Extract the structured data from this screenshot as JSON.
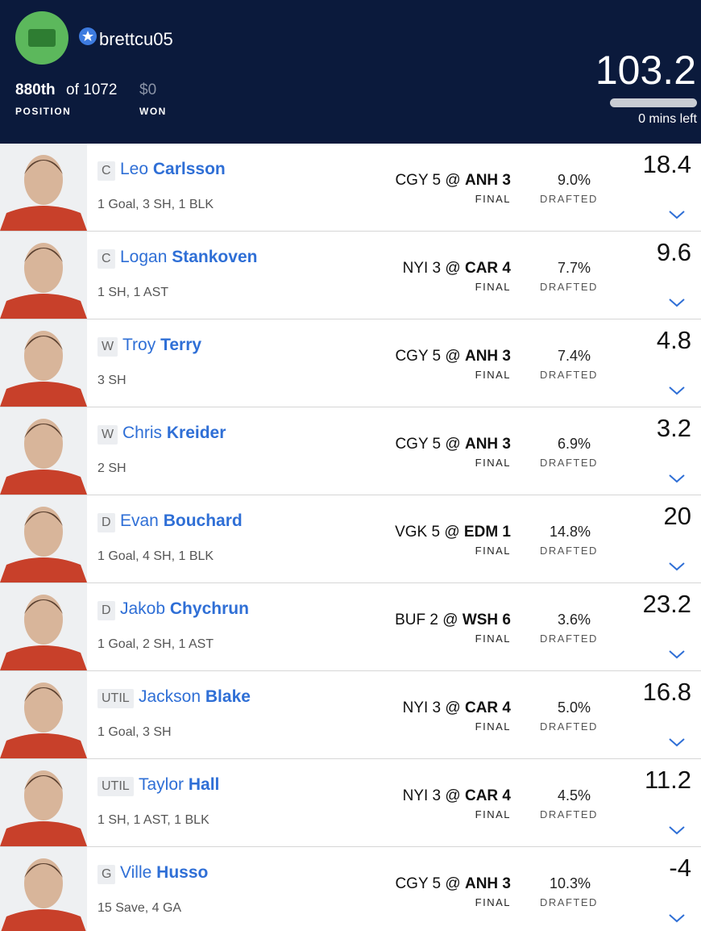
{
  "header": {
    "username": "brettcu05",
    "rank": "880th",
    "of_total": "of 1072",
    "rank_label": "POSITION",
    "won": "$0",
    "won_label": "WON",
    "score": "103.2",
    "time_left": "0 mins left"
  },
  "players": [
    {
      "pos": "C",
      "first": "Leo",
      "last": "Carlsson",
      "stats": "1 Goal, 3 SH, 1 BLK",
      "away": "CGY 5",
      "at": "@",
      "home": "ANH 3",
      "bold": "home",
      "status": "FINAL",
      "drafted": "9.0%",
      "drafted_label": "DRAFTED",
      "points": "18.4"
    },
    {
      "pos": "C",
      "first": "Logan",
      "last": "Stankoven",
      "stats": "1 SH, 1 AST",
      "away": "NYI 3",
      "at": "@",
      "home": "CAR 4",
      "bold": "home",
      "status": "FINAL",
      "drafted": "7.7%",
      "drafted_label": "DRAFTED",
      "points": "9.6"
    },
    {
      "pos": "W",
      "first": "Troy",
      "last": "Terry",
      "stats": "3 SH",
      "away": "CGY 5",
      "at": "@",
      "home": "ANH 3",
      "bold": "home",
      "status": "FINAL",
      "drafted": "7.4%",
      "drafted_label": "DRAFTED",
      "points": "4.8"
    },
    {
      "pos": "W",
      "first": "Chris",
      "last": "Kreider",
      "stats": "2 SH",
      "away": "CGY 5",
      "at": "@",
      "home": "ANH 3",
      "bold": "home",
      "status": "FINAL",
      "drafted": "6.9%",
      "drafted_label": "DRAFTED",
      "points": "3.2"
    },
    {
      "pos": "D",
      "first": "Evan",
      "last": "Bouchard",
      "stats": "1 Goal, 4 SH, 1 BLK",
      "away": "VGK 5",
      "at": "@",
      "home": "EDM 1",
      "bold": "home",
      "status": "FINAL",
      "drafted": "14.8%",
      "drafted_label": "DRAFTED",
      "points": "20"
    },
    {
      "pos": "D",
      "first": "Jakob",
      "last": "Chychrun",
      "stats": "1 Goal, 2 SH, 1 AST",
      "away": "BUF 2",
      "at": "@",
      "home": "WSH 6",
      "bold": "home",
      "status": "FINAL",
      "drafted": "3.6%",
      "drafted_label": "DRAFTED",
      "points": "23.2"
    },
    {
      "pos": "UTIL",
      "first": "Jackson",
      "last": "Blake",
      "stats": "1 Goal, 3 SH",
      "away": "NYI 3",
      "at": "@",
      "home": "CAR 4",
      "bold": "home",
      "status": "FINAL",
      "drafted": "5.0%",
      "drafted_label": "DRAFTED",
      "points": "16.8"
    },
    {
      "pos": "UTIL",
      "first": "Taylor",
      "last": "Hall",
      "stats": "1 SH, 1 AST, 1 BLK",
      "away": "NYI 3",
      "at": "@",
      "home": "CAR 4",
      "bold": "home",
      "status": "FINAL",
      "drafted": "4.5%",
      "drafted_label": "DRAFTED",
      "points": "11.2"
    },
    {
      "pos": "G",
      "first": "Ville",
      "last": "Husso",
      "stats": "15 Save, 4 GA",
      "away": "CGY 5",
      "at": "@",
      "home": "ANH 3",
      "bold": "home",
      "status": "FINAL",
      "drafted": "10.3%",
      "drafted_label": "DRAFTED",
      "points": "-4"
    }
  ]
}
